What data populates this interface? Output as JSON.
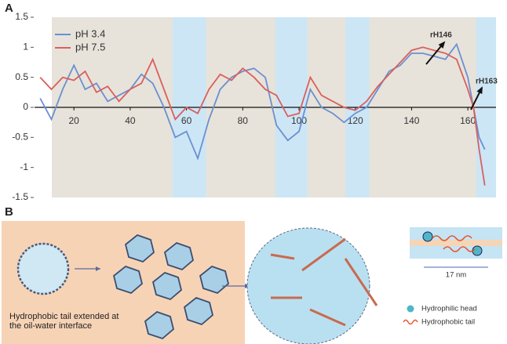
{
  "chart_data": {
    "type": "line",
    "panel_label": "A",
    "x": [
      8,
      12,
      16,
      20,
      24,
      28,
      32,
      36,
      40,
      44,
      48,
      52,
      56,
      60,
      64,
      68,
      72,
      76,
      80,
      84,
      88,
      92,
      96,
      100,
      104,
      108,
      112,
      116,
      120,
      124,
      128,
      132,
      136,
      140,
      144,
      148,
      152,
      156,
      160,
      162,
      164,
      166
    ],
    "series": [
      {
        "name": "pH 3.4",
        "color": "#6b8fd2",
        "values": [
          0.15,
          -0.2,
          0.3,
          0.7,
          0.3,
          0.4,
          0.1,
          0.2,
          0.3,
          0.55,
          0.4,
          0.0,
          -0.5,
          -0.4,
          -0.85,
          -0.2,
          0.3,
          0.5,
          0.6,
          0.65,
          0.5,
          -0.3,
          -0.55,
          -0.4,
          0.3,
          0.0,
          -0.1,
          -0.25,
          -0.1,
          0.0,
          0.3,
          0.6,
          0.7,
          0.9,
          0.9,
          0.85,
          0.8,
          1.05,
          0.5,
          0.0,
          -0.5,
          -0.7
        ]
      },
      {
        "name": "pH 7.5",
        "color": "#d9605e",
        "values": [
          0.5,
          0.3,
          0.5,
          0.45,
          0.6,
          0.25,
          0.35,
          0.1,
          0.3,
          0.4,
          0.8,
          0.3,
          -0.2,
          0.0,
          -0.1,
          0.3,
          0.55,
          0.45,
          0.65,
          0.5,
          0.3,
          0.2,
          -0.15,
          -0.1,
          0.5,
          0.2,
          0.1,
          0.0,
          -0.05,
          0.1,
          0.35,
          0.55,
          0.75,
          0.95,
          1.0,
          0.95,
          0.9,
          0.8,
          0.3,
          0.0,
          -0.7,
          -1.3
        ]
      }
    ],
    "xlim": [
      6,
      170
    ],
    "xticks": [
      20,
      40,
      60,
      80,
      100,
      120,
      140,
      160
    ],
    "ylim": [
      -1.5,
      1.5
    ],
    "yticks": [
      -1.5,
      -1,
      -0.5,
      0,
      0.5,
      1,
      1.5
    ],
    "highlight_ranges": [
      [
        55,
        67
      ],
      [
        91.6,
        103
      ],
      [
        116.5,
        125
      ],
      [
        163,
        170
      ]
    ],
    "legend": "top-left",
    "annotations": [
      "rH146",
      "rH163"
    ]
  },
  "diagram": {
    "panel_label": "B",
    "left_caption": "Hydrophobic tail extended at the oil-water interface",
    "inset_scale": "17 nm",
    "legend": [
      "Hydrophilic head",
      "Hydrophobic tail"
    ]
  }
}
